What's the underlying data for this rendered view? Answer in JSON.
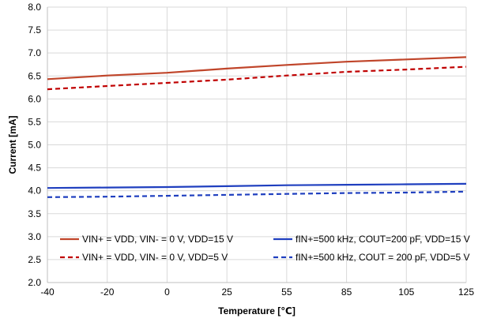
{
  "chart_data": {
    "type": "line",
    "title": "",
    "xlabel": "Temperature [℃]",
    "ylabel": "Current  [mA]",
    "xlim": [
      -40,
      125
    ],
    "ylim": [
      2.0,
      8.0
    ],
    "xticks": [
      -40,
      -20,
      0,
      25,
      55,
      85,
      105,
      125
    ],
    "yticks": [
      "2.0",
      "2.5",
      "3.0",
      "3.5",
      "4.0",
      "4.5",
      "5.0",
      "5.5",
      "6.0",
      "6.5",
      "7.0",
      "7.5",
      "8.0"
    ],
    "grid": true,
    "legend_position": "bottom-inside",
    "series": [
      {
        "name": "VIN+ = VDD, VIN- = 0 V, VDD=15 V",
        "color": "#c0452a",
        "dash": "solid",
        "x": [
          -40,
          -20,
          0,
          25,
          55,
          85,
          105,
          125
        ],
        "y": [
          6.43,
          6.51,
          6.57,
          6.66,
          6.74,
          6.81,
          6.86,
          6.91
        ]
      },
      {
        "name": "VIN+ = VDD, VIN- = 0 V, VDD=5 V",
        "color": "#c00000",
        "dash": "dashed",
        "x": [
          -40,
          -20,
          0,
          25,
          55,
          85,
          105,
          125
        ],
        "y": [
          6.21,
          6.28,
          6.35,
          6.42,
          6.51,
          6.59,
          6.64,
          6.7
        ]
      },
      {
        "name": "fIN+=500 kHz, COUT=200 pF, VDD=15 V",
        "color": "#1f3fbf",
        "dash": "solid",
        "x": [
          -40,
          -20,
          0,
          25,
          55,
          85,
          105,
          125
        ],
        "y": [
          4.06,
          4.07,
          4.08,
          4.1,
          4.12,
          4.13,
          4.14,
          4.15
        ]
      },
      {
        "name": "fIN+=500 kHz, COUT = 200 pF, VDD=5 V",
        "color": "#1f3fbf",
        "dash": "dashed",
        "x": [
          -40,
          -20,
          0,
          25,
          55,
          85,
          105,
          125
        ],
        "y": [
          3.86,
          3.87,
          3.89,
          3.91,
          3.93,
          3.95,
          3.96,
          3.98
        ]
      }
    ]
  }
}
